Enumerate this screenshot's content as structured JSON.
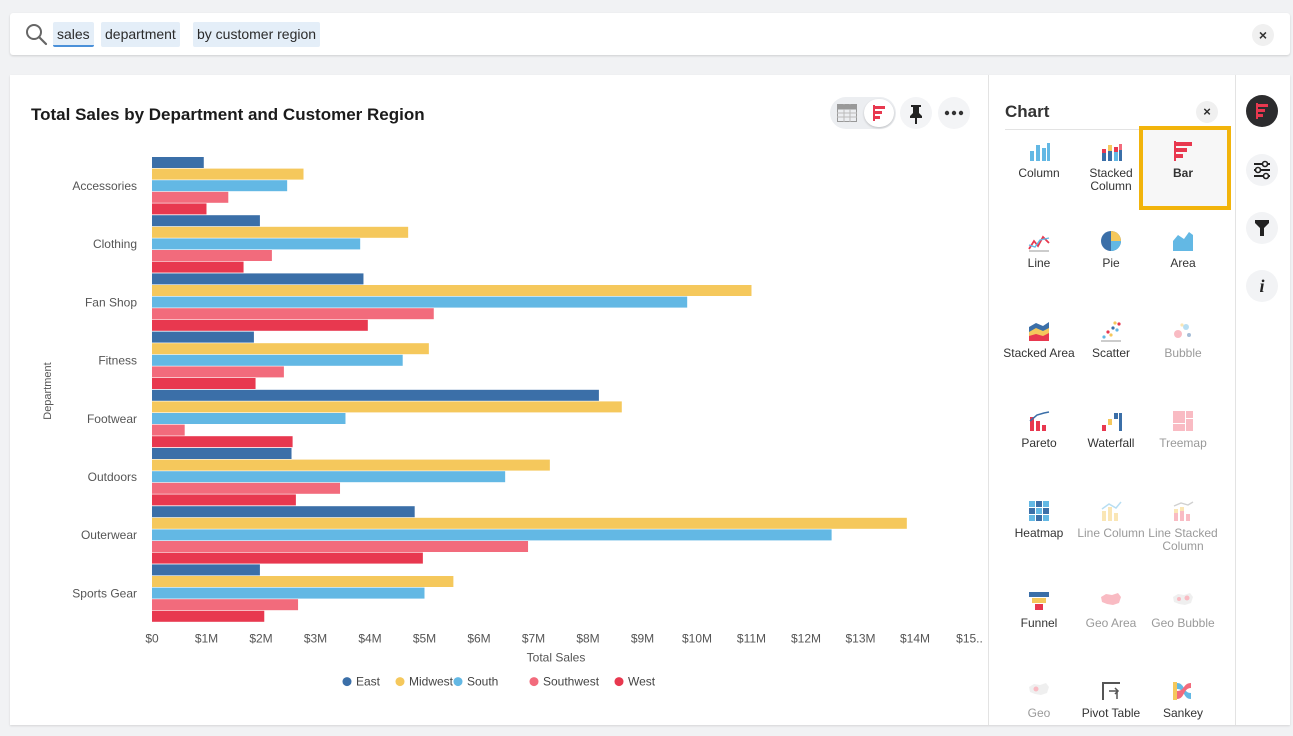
{
  "search": {
    "tokens": [
      "sales",
      "department",
      "by customer region"
    ],
    "clear_label": "×"
  },
  "answer": {
    "title": "Total Sales by Department and Customer Region"
  },
  "chart_data": {
    "type": "bar",
    "orientation": "horizontal",
    "title": "Total Sales by Department and Customer Region",
    "xlabel": "Total Sales",
    "ylabel": "Department",
    "xlim": [
      0,
      15000000
    ],
    "x_ticks": [
      "$0",
      "$1M",
      "$2M",
      "$3M",
      "$4M",
      "$5M",
      "$6M",
      "$7M",
      "$8M",
      "$9M",
      "$10M",
      "$11M",
      "$12M",
      "$13M",
      "$14M",
      "$15.."
    ],
    "categories": [
      "Accessories",
      "Clothing",
      "Fan Shop",
      "Fitness",
      "Footwear",
      "Outdoors",
      "Outerwear",
      "Sports Gear"
    ],
    "series": [
      {
        "name": "East",
        "color": "#3b6fa8",
        "values": [
          950000,
          1980000,
          3880000,
          1870000,
          8200000,
          2560000,
          4820000,
          1980000
        ]
      },
      {
        "name": "Midwest",
        "color": "#f5c85c",
        "values": [
          2780000,
          4700000,
          11000000,
          5080000,
          8620000,
          7300000,
          13850000,
          5530000
        ]
      },
      {
        "name": "South",
        "color": "#63b8e4",
        "values": [
          2480000,
          3820000,
          9820000,
          4600000,
          3550000,
          6480000,
          12470000,
          5000000
        ]
      },
      {
        "name": "Southwest",
        "color": "#f26b7c",
        "values": [
          1400000,
          2200000,
          5170000,
          2420000,
          600000,
          3450000,
          6900000,
          2680000
        ]
      },
      {
        "name": "West",
        "color": "#e8384f",
        "values": [
          1000000,
          1680000,
          3960000,
          1900000,
          2580000,
          2640000,
          4970000,
          2060000
        ]
      }
    ],
    "legend_position": "bottom",
    "grid": false
  },
  "chart_panel": {
    "title": "Chart",
    "close_label": "×",
    "types": [
      {
        "label": "Column",
        "icon": "column-chart-icon",
        "enabled": true
      },
      {
        "label": "Stacked Column",
        "icon": "stacked-column-chart-icon",
        "enabled": true
      },
      {
        "label": "Bar",
        "icon": "bar-chart-icon",
        "enabled": true,
        "selected": true
      },
      {
        "label": "Line",
        "icon": "line-chart-icon",
        "enabled": true
      },
      {
        "label": "Pie",
        "icon": "pie-chart-icon",
        "enabled": true
      },
      {
        "label": "Area",
        "icon": "area-chart-icon",
        "enabled": true
      },
      {
        "label": "Stacked Area",
        "icon": "stacked-area-chart-icon",
        "enabled": true
      },
      {
        "label": "Scatter",
        "icon": "scatter-chart-icon",
        "enabled": true
      },
      {
        "label": "Bubble",
        "icon": "bubble-chart-icon",
        "enabled": false
      },
      {
        "label": "Pareto",
        "icon": "pareto-chart-icon",
        "enabled": true
      },
      {
        "label": "Waterfall",
        "icon": "waterfall-chart-icon",
        "enabled": true
      },
      {
        "label": "Treemap",
        "icon": "treemap-chart-icon",
        "enabled": false
      },
      {
        "label": "Heatmap",
        "icon": "heatmap-chart-icon",
        "enabled": true
      },
      {
        "label": "Line Column",
        "icon": "line-column-chart-icon",
        "enabled": false
      },
      {
        "label": "Line Stacked Column",
        "icon": "line-stacked-column-chart-icon",
        "enabled": false
      },
      {
        "label": "Funnel",
        "icon": "funnel-chart-icon",
        "enabled": true
      },
      {
        "label": "Geo Area",
        "icon": "geo-area-chart-icon",
        "enabled": false
      },
      {
        "label": "Geo Bubble",
        "icon": "geo-bubble-chart-icon",
        "enabled": false
      },
      {
        "label": "Geo",
        "icon": "geo-heatmap-chart-icon",
        "enabled": false
      },
      {
        "label": "Pivot Table",
        "icon": "pivot-table-icon",
        "enabled": true
      },
      {
        "label": "Sankey",
        "icon": "sankey-chart-icon",
        "enabled": true
      }
    ]
  },
  "colors": {
    "accent": "#e8384f",
    "highlight": "#f2b40b",
    "token_bg": "#e4eef8"
  }
}
